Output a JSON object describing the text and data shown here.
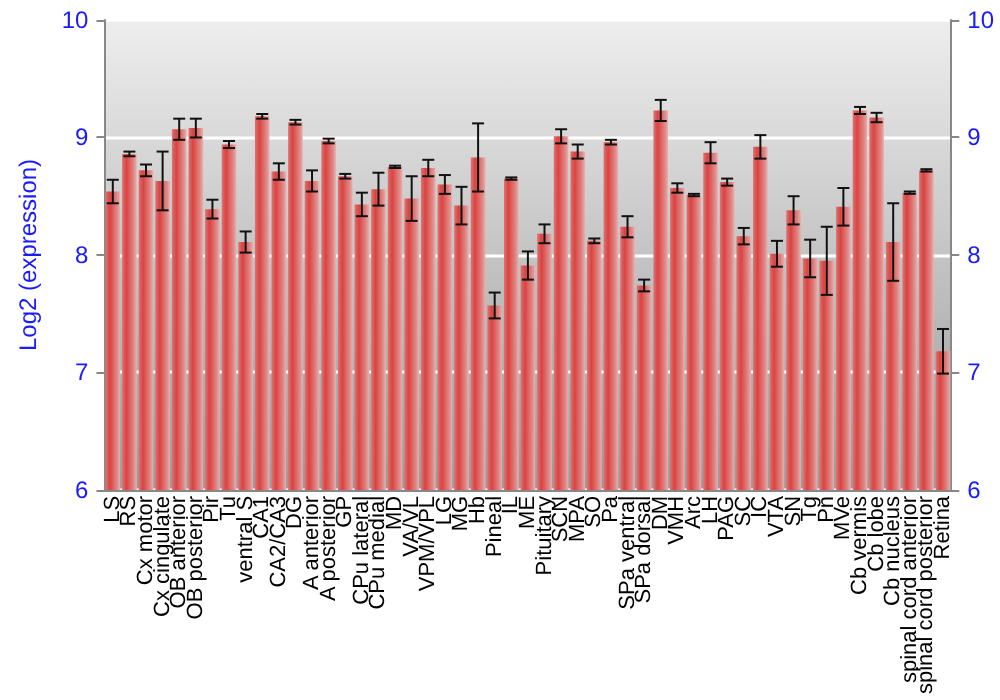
{
  "chart_data": {
    "type": "bar",
    "ylabel": "Log2 (expression)",
    "categories": [
      "LS",
      "RS",
      "Cx motor",
      "Cx cingulate",
      "OB anterior",
      "OB posterior",
      "Pir",
      "Tu",
      "ventral S",
      "CA1",
      "CA2/CA3",
      "DG",
      "A anterior",
      "A posterior",
      "GP",
      "CPu lateral",
      "CPu medial",
      "MD",
      "VA/VL",
      "VPM/VPL",
      "LG",
      "MG",
      "Hb",
      "Pineal",
      "IL",
      "ME",
      "Pituitary",
      "SCN",
      "MPA",
      "SO",
      "Pa",
      "SPa ventral",
      "SPa dorsal",
      "DM",
      "VMH",
      "Arc",
      "LH",
      "PAG",
      "SC",
      "IC",
      "VTA",
      "SN",
      "Tg",
      "Pn",
      "MVe",
      "Cb vermis",
      "Cb lobe",
      "Cb nucleus",
      "spinal cord anterior",
      "spinal cord posterior",
      "Retina"
    ],
    "values": [
      8.54,
      8.86,
      8.72,
      8.63,
      9.07,
      9.08,
      8.39,
      8.94,
      8.11,
      9.18,
      8.71,
      9.13,
      8.63,
      8.97,
      8.67,
      8.43,
      8.56,
      8.75,
      8.48,
      8.74,
      8.6,
      8.42,
      8.83,
      7.57,
      8.65,
      7.91,
      8.18,
      9.01,
      8.88,
      8.12,
      8.96,
      8.24,
      7.74,
      9.23,
      8.57,
      8.51,
      8.87,
      8.62,
      8.16,
      8.92,
      8.01,
      8.38,
      7.97,
      7.95,
      8.41,
      9.23,
      9.17,
      8.11,
      8.53,
      8.72,
      7.18
    ],
    "errors": [
      0.1,
      0.02,
      0.05,
      0.25,
      0.09,
      0.08,
      0.08,
      0.03,
      0.09,
      0.02,
      0.07,
      0.02,
      0.09,
      0.02,
      0.02,
      0.1,
      0.14,
      0.01,
      0.19,
      0.07,
      0.08,
      0.16,
      0.29,
      0.11,
      0.01,
      0.12,
      0.08,
      0.06,
      0.06,
      0.02,
      0.02,
      0.09,
      0.05,
      0.09,
      0.04,
      0.01,
      0.09,
      0.03,
      0.07,
      0.1,
      0.11,
      0.12,
      0.16,
      0.29,
      0.16,
      0.03,
      0.04,
      0.33,
      0.01,
      0.01,
      0.19
    ],
    "color": "#c83c3a",
    "ylim": [
      6,
      10
    ],
    "yticks": [
      6,
      7,
      8,
      9,
      10
    ],
    "y2lim": [
      6,
      10
    ],
    "y2ticks": [
      6,
      7,
      8,
      9,
      10
    ],
    "grid": "y"
  }
}
